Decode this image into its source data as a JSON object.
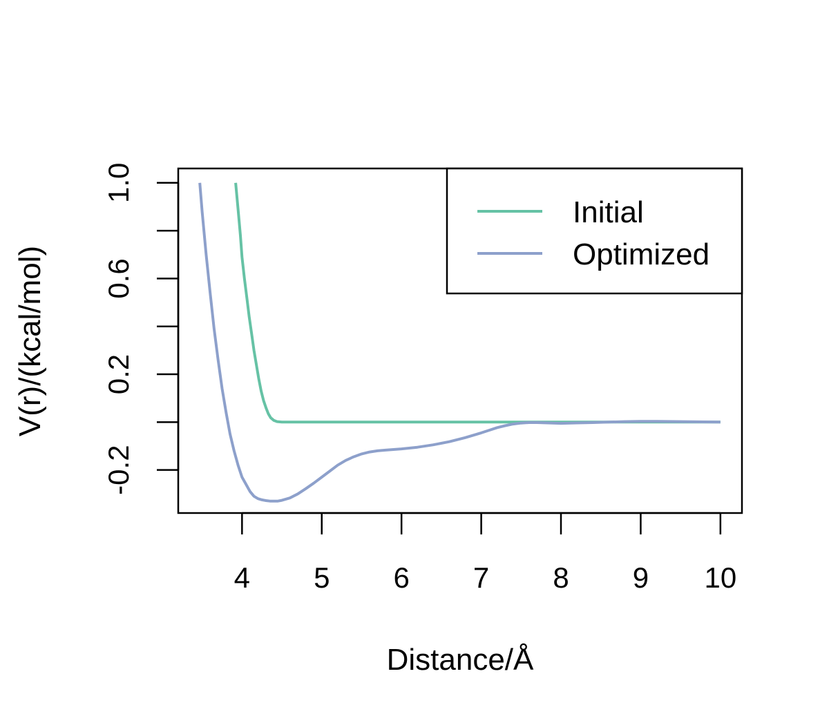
{
  "chart_data": {
    "type": "line",
    "xlabel": "Distance/Å",
    "ylabel": "V(r)/(kcal/mol)",
    "xlim": [
      3.2,
      10.27
    ],
    "ylim": [
      -0.38,
      1.06
    ],
    "x_ticks": [
      4,
      5,
      6,
      7,
      8,
      9,
      10
    ],
    "x_tick_labels": [
      "4",
      "5",
      "6",
      "7",
      "8",
      "9",
      "10"
    ],
    "y_ticks": [
      -0.2,
      0.0,
      0.2,
      0.4,
      0.6,
      0.8,
      1.0
    ],
    "y_tick_labels": [
      "-0.2",
      "",
      "0.2",
      "",
      "0.6",
      "",
      "1.0"
    ],
    "grid": false,
    "legend_position": "top-right",
    "series": [
      {
        "name": "Initial",
        "color": "#66c2a5",
        "points": [
          [
            3.92,
            1.0
          ],
          [
            3.95,
            0.89
          ],
          [
            3.98,
            0.78
          ],
          [
            4.0,
            0.69
          ],
          [
            4.03,
            0.6
          ],
          [
            4.06,
            0.52
          ],
          [
            4.09,
            0.44
          ],
          [
            4.12,
            0.37
          ],
          [
            4.15,
            0.3
          ],
          [
            4.18,
            0.24
          ],
          [
            4.21,
            0.18
          ],
          [
            4.24,
            0.13
          ],
          [
            4.27,
            0.09
          ],
          [
            4.3,
            0.06
          ],
          [
            4.33,
            0.035
          ],
          [
            4.36,
            0.018
          ],
          [
            4.4,
            0.007
          ],
          [
            4.44,
            0.002
          ],
          [
            4.5,
            0.0
          ],
          [
            5.0,
            0.0
          ],
          [
            6.0,
            0.0
          ],
          [
            7.0,
            0.0
          ],
          [
            8.0,
            0.0
          ],
          [
            9.0,
            0.0
          ],
          [
            10.0,
            0.0
          ]
        ]
      },
      {
        "name": "Optimized",
        "color": "#8da0cb",
        "points": [
          [
            3.47,
            1.0
          ],
          [
            3.5,
            0.88
          ],
          [
            3.55,
            0.7
          ],
          [
            3.6,
            0.54
          ],
          [
            3.65,
            0.39
          ],
          [
            3.7,
            0.26
          ],
          [
            3.75,
            0.14
          ],
          [
            3.8,
            0.04
          ],
          [
            3.85,
            -0.05
          ],
          [
            3.9,
            -0.12
          ],
          [
            3.95,
            -0.18
          ],
          [
            4.0,
            -0.23
          ],
          [
            4.05,
            -0.26
          ],
          [
            4.1,
            -0.29
          ],
          [
            4.15,
            -0.31
          ],
          [
            4.2,
            -0.32
          ],
          [
            4.25,
            -0.325
          ],
          [
            4.3,
            -0.328
          ],
          [
            4.35,
            -0.33
          ],
          [
            4.4,
            -0.33
          ],
          [
            4.45,
            -0.33
          ],
          [
            4.5,
            -0.327
          ],
          [
            4.6,
            -0.317
          ],
          [
            4.7,
            -0.3
          ],
          [
            4.8,
            -0.278
          ],
          [
            4.9,
            -0.255
          ],
          [
            5.0,
            -0.23
          ],
          [
            5.1,
            -0.205
          ],
          [
            5.2,
            -0.18
          ],
          [
            5.3,
            -0.16
          ],
          [
            5.4,
            -0.145
          ],
          [
            5.5,
            -0.133
          ],
          [
            5.6,
            -0.125
          ],
          [
            5.7,
            -0.12
          ],
          [
            5.8,
            -0.117
          ],
          [
            6.0,
            -0.112
          ],
          [
            6.2,
            -0.105
          ],
          [
            6.4,
            -0.095
          ],
          [
            6.6,
            -0.082
          ],
          [
            6.8,
            -0.065
          ],
          [
            7.0,
            -0.045
          ],
          [
            7.1,
            -0.034
          ],
          [
            7.2,
            -0.023
          ],
          [
            7.3,
            -0.015
          ],
          [
            7.4,
            -0.008
          ],
          [
            7.5,
            -0.004
          ],
          [
            7.6,
            -0.002
          ],
          [
            7.7,
            -0.002
          ],
          [
            7.8,
            -0.003
          ],
          [
            8.0,
            -0.005
          ],
          [
            8.2,
            -0.0035
          ],
          [
            8.4,
            -0.002
          ],
          [
            8.6,
            0.0
          ],
          [
            8.8,
            0.002
          ],
          [
            9.0,
            0.003
          ],
          [
            9.2,
            0.003
          ],
          [
            9.5,
            0.002
          ],
          [
            10.0,
            0.0
          ]
        ]
      }
    ]
  }
}
